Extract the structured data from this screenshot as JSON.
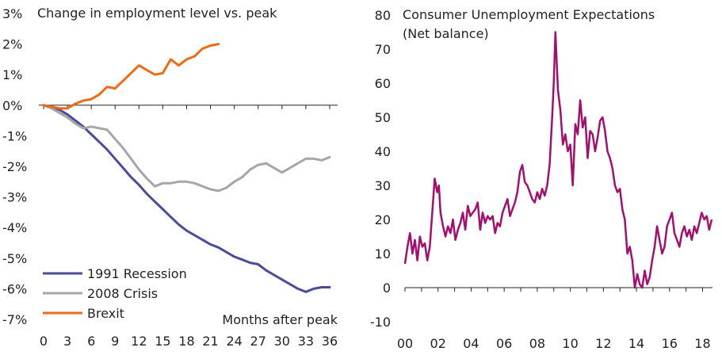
{
  "chart_data": [
    {
      "type": "line",
      "title": "Change in employment level vs. peak",
      "xlabel": "Months after peak",
      "ylabel": "",
      "xlim": [
        0,
        37
      ],
      "ylim": [
        -7,
        3
      ],
      "x_ticks": [
        "0",
        "3",
        "6",
        "9",
        "12",
        "15",
        "18",
        "21",
        "24",
        "27",
        "30",
        "33",
        "36"
      ],
      "y_ticks": [
        "3%",
        "2%",
        "1%",
        "0%",
        "-1%",
        "-2%",
        "-3%",
        "-4%",
        "-5%",
        "-6%",
        "-7%"
      ],
      "legend_position": "bottom-left",
      "series": [
        {
          "name": "1991 Recession",
          "color": "#4b4b9b",
          "x": [
            0,
            1,
            2,
            3,
            4,
            5,
            6,
            7,
            8,
            9,
            10,
            11,
            12,
            13,
            14,
            15,
            16,
            17,
            18,
            19,
            20,
            21,
            22,
            23,
            24,
            25,
            26,
            27,
            28,
            29,
            30,
            31,
            32,
            33,
            34,
            35,
            36
          ],
          "y": [
            0,
            -0.05,
            -0.15,
            -0.3,
            -0.5,
            -0.7,
            -0.95,
            -1.2,
            -1.45,
            -1.75,
            -2.05,
            -2.35,
            -2.6,
            -2.9,
            -3.15,
            -3.4,
            -3.65,
            -3.9,
            -4.1,
            -4.25,
            -4.4,
            -4.55,
            -4.65,
            -4.8,
            -4.95,
            -5.05,
            -5.15,
            -5.2,
            -5.4,
            -5.55,
            -5.7,
            -5.85,
            -6.0,
            -6.1,
            -6.0,
            -5.95,
            -5.95
          ]
        },
        {
          "name": "2008 Crisis",
          "color": "#a6a6a6",
          "x": [
            0,
            1,
            2,
            3,
            4,
            5,
            6,
            7,
            8,
            9,
            10,
            11,
            12,
            13,
            14,
            15,
            16,
            17,
            18,
            19,
            20,
            21,
            22,
            23,
            24,
            25,
            26,
            27,
            28,
            29,
            30,
            31,
            32,
            33,
            34,
            35,
            36
          ],
          "y": [
            0,
            -0.1,
            -0.25,
            -0.4,
            -0.6,
            -0.75,
            -0.7,
            -0.75,
            -0.8,
            -1.1,
            -1.4,
            -1.75,
            -2.1,
            -2.4,
            -2.65,
            -2.55,
            -2.55,
            -2.5,
            -2.5,
            -2.55,
            -2.65,
            -2.75,
            -2.8,
            -2.7,
            -2.5,
            -2.35,
            -2.1,
            -1.95,
            -1.9,
            -2.05,
            -2.2,
            -2.05,
            -1.9,
            -1.75,
            -1.75,
            -1.8,
            -1.7
          ]
        },
        {
          "name": "Brexit",
          "color": "#ee6a15",
          "x": [
            0,
            1,
            2,
            3,
            4,
            5,
            6,
            7,
            8,
            9,
            10,
            11,
            12,
            13,
            14,
            15,
            16,
            17,
            18,
            19,
            20,
            21,
            22
          ],
          "y": [
            0,
            -0.05,
            -0.1,
            -0.1,
            0.05,
            0.15,
            0.2,
            0.35,
            0.6,
            0.55,
            0.8,
            1.05,
            1.3,
            1.15,
            1.0,
            1.05,
            1.5,
            1.3,
            1.5,
            1.6,
            1.85,
            1.95,
            2.0
          ]
        }
      ]
    },
    {
      "type": "line",
      "title": "Consumer Unemployment Expectations",
      "subtitle": "(Net balance)",
      "xlabel": "",
      "ylabel": "",
      "xlim": [
        2000,
        2018.6
      ],
      "ylim": [
        -10,
        80
      ],
      "x_ticks": [
        "00",
        "02",
        "04",
        "06",
        "08",
        "10",
        "12",
        "14",
        "16",
        "18"
      ],
      "y_ticks": [
        "80",
        "70",
        "60",
        "50",
        "40",
        "30",
        "20",
        "10",
        "0",
        "-10"
      ],
      "series": [
        {
          "name": "",
          "color": "#a50e6d",
          "x": [
            2000.0,
            2000.15,
            2000.3,
            2000.45,
            2000.6,
            2000.75,
            2000.9,
            2001.05,
            2001.2,
            2001.35,
            2001.5,
            2001.65,
            2001.8,
            2001.95,
            2002.05,
            2002.15,
            2002.3,
            2002.45,
            2002.6,
            2002.75,
            2002.9,
            2003.05,
            2003.2,
            2003.35,
            2003.5,
            2003.65,
            2003.8,
            2003.95,
            2004.1,
            2004.25,
            2004.4,
            2004.55,
            2004.7,
            2004.85,
            2005.0,
            2005.15,
            2005.3,
            2005.45,
            2005.6,
            2005.75,
            2005.9,
            2006.05,
            2006.2,
            2006.35,
            2006.5,
            2006.65,
            2006.8,
            2006.95,
            2007.1,
            2007.25,
            2007.4,
            2007.55,
            2007.7,
            2007.85,
            2008.0,
            2008.15,
            2008.3,
            2008.45,
            2008.6,
            2008.75,
            2008.9,
            2009.0,
            2009.1,
            2009.25,
            2009.4,
            2009.55,
            2009.7,
            2009.85,
            2010.0,
            2010.15,
            2010.3,
            2010.45,
            2010.6,
            2010.75,
            2010.9,
            2011.05,
            2011.2,
            2011.35,
            2011.5,
            2011.65,
            2011.8,
            2011.95,
            2012.1,
            2012.25,
            2012.4,
            2012.55,
            2012.7,
            2012.85,
            2013.0,
            2013.15,
            2013.3,
            2013.45,
            2013.6,
            2013.75,
            2013.9,
            2014.05,
            2014.2,
            2014.35,
            2014.5,
            2014.65,
            2014.8,
            2014.95,
            2015.1,
            2015.25,
            2015.4,
            2015.55,
            2015.7,
            2015.85,
            2016.0,
            2016.15,
            2016.3,
            2016.45,
            2016.6,
            2016.75,
            2016.9,
            2017.05,
            2017.2,
            2017.35,
            2017.5,
            2017.65,
            2017.8,
            2017.95,
            2018.1,
            2018.25,
            2018.4,
            2018.55
          ],
          "y": [
            7,
            12,
            16,
            10,
            14,
            8,
            15,
            12,
            13,
            8,
            12,
            22,
            32,
            28,
            30,
            22,
            18,
            15,
            18,
            16,
            20,
            14,
            17,
            19,
            22,
            17,
            24,
            21,
            22,
            23,
            25,
            17,
            22,
            19,
            21,
            20,
            21,
            16,
            19,
            18,
            22,
            24,
            26,
            21,
            23,
            25,
            28,
            34,
            36,
            31,
            30,
            28,
            26,
            25,
            28,
            26,
            29,
            27,
            30,
            36,
            50,
            60,
            75,
            58,
            52,
            42,
            45,
            40,
            42,
            30,
            48,
            45,
            55,
            47,
            50,
            38,
            46,
            45,
            40,
            44,
            49,
            50,
            46,
            40,
            38,
            35,
            30,
            28,
            29,
            23,
            20,
            10,
            12,
            8,
            0,
            4,
            1,
            0,
            5,
            1,
            3,
            8,
            12,
            18,
            14,
            10,
            12,
            18,
            20,
            22,
            16,
            14,
            12,
            16,
            18,
            15,
            17,
            14,
            18,
            16,
            19,
            22,
            20,
            21,
            17,
            20
          ]
        }
      ]
    }
  ]
}
